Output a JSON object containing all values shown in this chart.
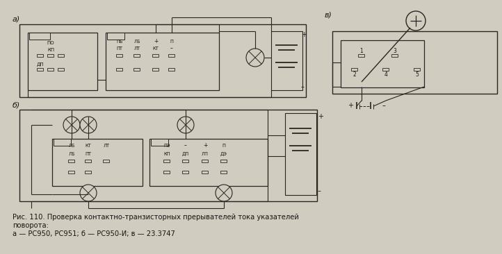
{
  "bg_color": "#d0ccbf",
  "line_color": "#2a2520",
  "text_color": "#1a1510",
  "caption_line1": "Рис. 110. Проверка контактно-транзисторных прерывателей тока указателей",
  "caption_line2": "поворота:",
  "caption_line3": "а — РС950, РС951; б — РС950-И; в — 23.3747",
  "label_a": "а)",
  "label_b": "б)",
  "label_v": "в)"
}
